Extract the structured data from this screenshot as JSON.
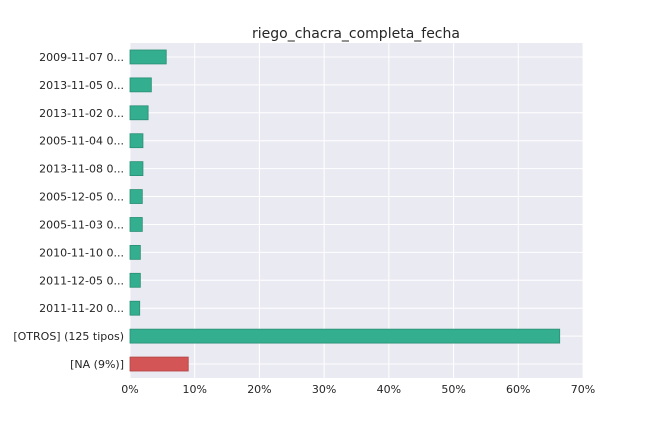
{
  "chart_data": {
    "type": "bar",
    "orientation": "horizontal",
    "title": "riego_chacra_completa_fecha",
    "xlabel": "",
    "ylabel": "",
    "categories": [
      "2009-11-07 0...",
      "2013-11-05 0...",
      "2013-11-02 0...",
      "2005-11-04 0...",
      "2013-11-08 0...",
      "2005-12-05 0...",
      "2005-11-03 0...",
      "2010-11-10 0...",
      "2011-12-05 0...",
      "2011-11-20 0...",
      "[OTROS] (125 tipos)",
      "[NA (9%)]"
    ],
    "values": [
      5.6,
      3.3,
      2.8,
      2.0,
      2.0,
      1.9,
      1.9,
      1.6,
      1.6,
      1.5,
      66.4,
      9.0
    ],
    "xlim": [
      0,
      70
    ],
    "xticks": [
      0,
      10,
      20,
      30,
      40,
      50,
      60,
      70
    ],
    "xtick_labels": [
      "0%",
      "10%",
      "20%",
      "30%",
      "40%",
      "50%",
      "60%",
      "70%"
    ],
    "grid": true,
    "colors": {
      "default": "#33ae8e",
      "default_edge": "#2a8f74",
      "na": "#d45555",
      "na_edge": "#b04444",
      "background": "#eaeaf2",
      "grid": "#ffffff"
    }
  }
}
